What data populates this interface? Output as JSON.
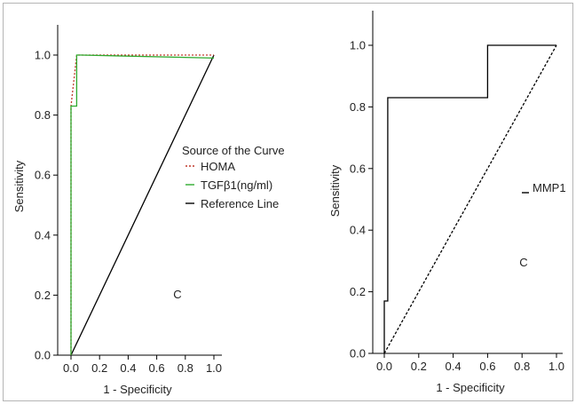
{
  "chart_data": [
    {
      "type": "line",
      "xlabel": "1 - Specificity",
      "ylabel": "Sensitivity",
      "xlim": [
        0.0,
        1.0
      ],
      "ylim": [
        0.0,
        1.0
      ],
      "x_ticks": [
        "0.0",
        "0.2",
        "0.4",
        "0.6",
        "0.8",
        "1.0"
      ],
      "y_ticks": [
        "0.0",
        "0.2",
        "0.4",
        "0.6",
        "0.8",
        "1.0"
      ],
      "grid": false,
      "panel_letter": "C",
      "legend": {
        "title": "Source of the Curve",
        "placement": "center-right",
        "entries": [
          "HOMA",
          "TGFβ1(ng/ml)",
          "Reference Line"
        ]
      },
      "series": [
        {
          "name": "HOMA",
          "color": "#c0392b",
          "style": "dotted",
          "x": [
            0.0,
            0.0,
            0.04,
            1.0
          ],
          "y": [
            0.0,
            0.83,
            1.0,
            1.0
          ]
        },
        {
          "name": "TGFβ1(ng/ml)",
          "color": "#2eaa2e",
          "style": "solid",
          "x": [
            0.0,
            0.0,
            0.04,
            0.04,
            0.07,
            0.07,
            1.0
          ],
          "y": [
            0.0,
            0.83,
            0.83,
            1.0,
            1.0,
            1.0,
            0.99
          ]
        },
        {
          "name": "Reference Line",
          "color": "#000000",
          "style": "solid",
          "x": [
            0.0,
            1.0
          ],
          "y": [
            0.0,
            1.0
          ]
        }
      ]
    },
    {
      "type": "line",
      "xlabel": "1 - Specificity",
      "ylabel": "Sensitivity",
      "xlim": [
        0.0,
        1.0
      ],
      "ylim": [
        0.0,
        1.0
      ],
      "x_ticks": [
        "0.0",
        "0.2",
        "0.4",
        "0.6",
        "0.8",
        "1.0"
      ],
      "y_ticks": [
        "0.0",
        "0.2",
        "0.4",
        "0.6",
        "0.8",
        "1.0"
      ],
      "grid": false,
      "panel_letter": "C",
      "legend": {
        "placement": "center-right",
        "entries": [
          "MMP1"
        ]
      },
      "series": [
        {
          "name": "MMP1",
          "color": "#000000",
          "style": "solid",
          "x": [
            0.0,
            0.0,
            0.02,
            0.02,
            0.6,
            0.6,
            1.0
          ],
          "y": [
            0.0,
            0.17,
            0.17,
            0.83,
            0.83,
            1.0,
            1.0
          ]
        },
        {
          "color": "#000000",
          "style": "dashed",
          "x": [
            0.0,
            1.0
          ],
          "y": [
            0.0,
            1.0
          ]
        }
      ]
    }
  ]
}
